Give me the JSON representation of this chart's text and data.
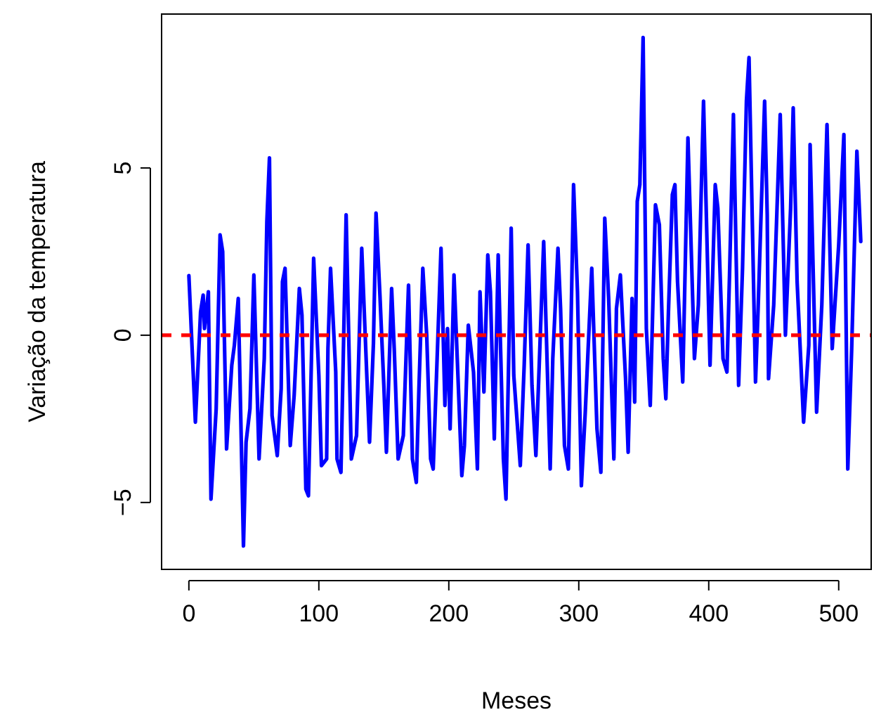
{
  "chart_data": {
    "type": "line",
    "xlabel": "Meses",
    "ylabel": "Variação da temperatura",
    "xlim": [
      -21,
      525
    ],
    "ylim": [
      -7,
      9.6
    ],
    "xticks": [
      0,
      100,
      200,
      300,
      400,
      500
    ],
    "yticks": [
      -5,
      0,
      5
    ],
    "grid": false,
    "marker": "none",
    "line_style": "solid",
    "ref_lines": [
      {
        "axis": "y",
        "value": 0,
        "color": "#ff0000",
        "line_style": "dashed"
      }
    ],
    "series": [
      {
        "color": "#0000ff",
        "x": [
          0,
          5,
          9,
          11,
          12,
          15,
          17,
          21,
          24,
          26,
          29,
          33,
          35,
          38,
          42,
          44,
          47,
          50,
          54,
          58,
          60,
          62,
          64,
          68,
          71,
          72,
          74,
          78,
          81,
          85,
          87,
          90,
          92,
          96,
          100,
          102,
          106,
          107,
          109,
          113,
          114,
          117,
          121,
          125,
          129,
          133,
          137,
          139,
          142,
          144,
          147,
          150,
          152,
          156,
          158,
          161,
          165,
          169,
          172,
          175,
          177,
          180,
          183,
          186,
          188,
          194,
          197,
          199,
          201,
          204,
          210,
          212,
          215,
          219,
          222,
          224,
          227,
          230,
          232,
          235,
          238,
          242,
          244,
          248,
          250,
          255,
          258,
          261,
          264,
          267,
          269,
          273,
          278,
          280,
          284,
          286,
          289,
          292,
          296,
          299,
          302,
          305,
          310,
          314,
          317,
          320,
          323,
          327,
          329,
          332,
          336,
          338,
          341,
          343,
          345,
          347,
          349.5,
          352,
          355,
          359,
          362,
          365,
          367,
          369,
          372,
          374,
          376,
          380,
          384,
          389,
          392,
          396,
          401,
          405,
          407,
          411,
          414,
          416,
          419,
          423,
          426,
          429,
          431,
          436,
          438,
          443,
          445,
          446,
          450,
          455,
          459,
          463,
          465,
          468,
          473,
          477,
          478,
          483,
          487,
          491,
          495,
          500,
          504,
          507,
          510,
          514,
          517
        ],
        "values": [
          1.78,
          -2.6,
          0.7,
          1.2,
          0.2,
          1.3,
          -4.9,
          -2.2,
          3.0,
          2.5,
          -3.4,
          -0.9,
          -0.3,
          1.1,
          -6.3,
          -3.2,
          -2.2,
          1.8,
          -3.7,
          -0.7,
          3.4,
          5.3,
          -2.4,
          -3.6,
          -1.6,
          1.6,
          2.0,
          -3.3,
          -1.8,
          1.4,
          0.6,
          -4.6,
          -4.8,
          2.3,
          -1.2,
          -3.9,
          -3.7,
          -0.4,
          2.0,
          -1.1,
          -3.7,
          -4.1,
          3.6,
          -3.7,
          -3.0,
          2.6,
          -1.3,
          -3.2,
          -0.25,
          3.65,
          1.2,
          -1.5,
          -3.5,
          1.4,
          -0.4,
          -3.7,
          -3.0,
          1.5,
          -3.7,
          -4.4,
          -1.6,
          2.0,
          0.0,
          -3.7,
          -4.0,
          2.6,
          -2.1,
          0.2,
          -2.8,
          1.8,
          -4.2,
          -3.3,
          0.3,
          -1.1,
          -4.0,
          1.3,
          -1.7,
          2.4,
          1.3,
          -3.1,
          2.4,
          -3.7,
          -4.9,
          3.2,
          -1.2,
          -3.9,
          -0.9,
          2.7,
          -1.5,
          -3.6,
          -1.5,
          2.8,
          -4.0,
          -0.7,
          2.6,
          0.8,
          -3.3,
          -4.0,
          4.5,
          1.3,
          -4.5,
          -2.3,
          2.0,
          -2.8,
          -4.1,
          3.5,
          1.1,
          -3.7,
          0.8,
          1.8,
          -1.3,
          -3.5,
          1.1,
          -2.0,
          4.0,
          4.5,
          8.9,
          0.2,
          -2.1,
          3.9,
          3.3,
          -0.7,
          -1.9,
          0.7,
          4.2,
          4.5,
          1.6,
          -1.4,
          5.9,
          -0.7,
          0.9,
          7.0,
          -0.9,
          4.5,
          3.8,
          -0.7,
          -1.1,
          1.8,
          6.6,
          -1.5,
          2.0,
          7.0,
          8.3,
          -1.4,
          0.8,
          7.0,
          3.6,
          -1.3,
          0.9,
          6.6,
          0.0,
          3.8,
          6.8,
          1.6,
          -2.6,
          -0.3,
          5.7,
          -2.3,
          0.9,
          6.3,
          -0.4,
          2.7,
          6.0,
          -4.0,
          -0.4,
          5.5,
          2.8
        ]
      }
    ]
  }
}
